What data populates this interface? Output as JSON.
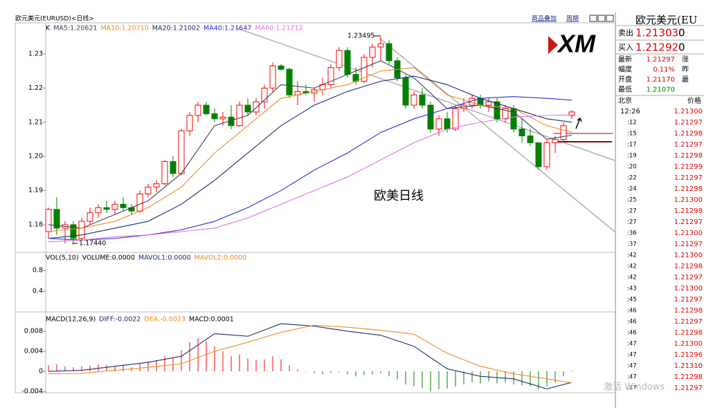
{
  "header": {
    "title": "欧元美元(EURUSD)<日线>",
    "links": [
      "商品叠加",
      "周期"
    ]
  },
  "chart_data": [
    {
      "type": "candlestick",
      "legend_prefix": "K",
      "open": [
        1.178,
        1.1845,
        1.179,
        1.18,
        1.176,
        1.181,
        1.1835,
        1.185,
        1.1845,
        1.186,
        1.185,
        1.184,
        1.189,
        1.191,
        1.192,
        1.1985,
        1.195,
        1.2075,
        1.212,
        1.215,
        1.2125,
        1.211,
        1.2115,
        1.209,
        1.215,
        1.213,
        1.216,
        1.22,
        1.2265,
        1.2255,
        1.218,
        1.219,
        1.2185,
        1.2195,
        1.221,
        1.226,
        1.231,
        1.224,
        1.222,
        1.229,
        1.232,
        1.233,
        1.228,
        1.223,
        1.215,
        1.218,
        1.215,
        1.208,
        1.211,
        1.208,
        1.214,
        1.215,
        1.217,
        1.215,
        1.216,
        1.211,
        1.214,
        1.208,
        1.206,
        1.204,
        1.197,
        1.204,
        1.205,
        1.212
      ],
      "high": [
        1.185,
        1.188,
        1.181,
        1.181,
        1.182,
        1.185,
        1.186,
        1.187,
        1.187,
        1.188,
        1.186,
        1.19,
        1.192,
        1.193,
        1.199,
        1.2,
        1.208,
        1.213,
        1.216,
        1.216,
        1.214,
        1.213,
        1.215,
        1.216,
        1.217,
        1.217,
        1.221,
        1.2275,
        1.227,
        1.226,
        1.222,
        1.221,
        1.22,
        1.223,
        1.227,
        1.232,
        1.232,
        1.226,
        1.23,
        1.233,
        1.23495,
        1.234,
        1.229,
        1.224,
        1.219,
        1.22,
        1.216,
        1.212,
        1.213,
        1.215,
        1.217,
        1.218,
        1.218,
        1.217,
        1.217,
        1.215,
        1.215,
        1.211,
        1.208,
        1.204,
        1.205,
        1.206,
        1.21,
        1.2135
      ],
      "low": [
        1.176,
        1.177,
        1.1745,
        1.1744,
        1.1755,
        1.18,
        1.182,
        1.1835,
        1.183,
        1.184,
        1.183,
        1.1835,
        1.188,
        1.1895,
        1.1915,
        1.194,
        1.1945,
        1.206,
        1.21,
        1.212,
        1.21,
        1.209,
        1.208,
        1.2085,
        1.212,
        1.212,
        1.214,
        1.219,
        1.225,
        1.217,
        1.215,
        1.218,
        1.216,
        1.218,
        1.22,
        1.225,
        1.223,
        1.221,
        1.2215,
        1.226,
        1.228,
        1.227,
        1.222,
        1.214,
        1.214,
        1.214,
        1.207,
        1.206,
        1.207,
        1.2075,
        1.213,
        1.214,
        1.214,
        1.213,
        1.21,
        1.21,
        1.207,
        1.204,
        1.203,
        1.196,
        1.196,
        1.201,
        1.204,
        1.211
      ],
      "close": [
        1.1845,
        1.179,
        1.18,
        1.176,
        1.181,
        1.1835,
        1.185,
        1.1845,
        1.186,
        1.185,
        1.184,
        1.189,
        1.191,
        1.192,
        1.1985,
        1.195,
        1.2075,
        1.212,
        1.215,
        1.2125,
        1.211,
        1.2115,
        1.209,
        1.215,
        1.213,
        1.216,
        1.22,
        1.2265,
        1.2255,
        1.218,
        1.219,
        1.2185,
        1.2195,
        1.221,
        1.226,
        1.231,
        1.224,
        1.222,
        1.229,
        1.232,
        1.233,
        1.228,
        1.223,
        1.215,
        1.218,
        1.215,
        1.208,
        1.211,
        1.208,
        1.214,
        1.215,
        1.217,
        1.215,
        1.216,
        1.211,
        1.214,
        1.208,
        1.206,
        1.204,
        1.197,
        1.204,
        1.205,
        1.209,
        1.213
      ],
      "up_color": "#ff0000",
      "down_color": "#008000",
      "series": [
        {
          "name": "MA5:1.20621",
          "color": "#3a3f5c",
          "x": [
            0,
            4,
            8,
            12,
            16,
            20,
            24,
            28,
            32,
            36,
            40,
            44,
            48,
            52,
            56,
            60,
            63
          ],
          "values": [
            1.18,
            1.179,
            1.183,
            1.187,
            1.195,
            1.209,
            1.212,
            1.221,
            1.22,
            1.224,
            1.228,
            1.223,
            1.214,
            1.215,
            1.213,
            1.205,
            1.20621
          ]
        },
        {
          "name": "MA10:1.20710",
          "color": "#f08a24",
          "x": [
            0,
            4,
            8,
            12,
            16,
            20,
            24,
            28,
            32,
            36,
            40,
            44,
            48,
            52,
            56,
            60,
            63
          ],
          "values": [
            1.178,
            1.179,
            1.181,
            1.185,
            1.191,
            1.201,
            1.209,
            1.217,
            1.219,
            1.221,
            1.225,
            1.226,
            1.218,
            1.215,
            1.214,
            1.209,
            1.2071
          ]
        },
        {
          "name": "MA20:1.21002",
          "color": "#1c2b6e",
          "x": [
            0,
            4,
            8,
            12,
            16,
            20,
            24,
            28,
            32,
            36,
            40,
            44,
            48,
            52,
            56,
            60,
            63
          ],
          "values": [
            1.176,
            1.177,
            1.179,
            1.181,
            1.186,
            1.193,
            1.201,
            1.209,
            1.215,
            1.219,
            1.222,
            1.2235,
            1.221,
            1.217,
            1.214,
            1.211,
            1.21002
          ]
        },
        {
          "name": "MA40:1.21647",
          "color": "#2a2ad0",
          "x": [
            0,
            4,
            8,
            12,
            16,
            20,
            24,
            28,
            32,
            36,
            40,
            44,
            48,
            52,
            56,
            60,
            63
          ],
          "values": [
            1.176,
            1.1755,
            1.176,
            1.177,
            1.1785,
            1.181,
            1.185,
            1.19,
            1.196,
            1.201,
            1.207,
            1.211,
            1.214,
            1.217,
            1.2175,
            1.217,
            1.21647
          ]
        },
        {
          "name": "MA60:1.21212",
          "color": "#e070e0",
          "x": [
            0,
            4,
            8,
            12,
            16,
            20,
            24,
            28,
            32,
            36,
            40,
            44,
            48,
            52,
            56,
            60,
            63
          ],
          "values": [
            1.175,
            1.1755,
            1.1765,
            1.177,
            1.178,
            1.179,
            1.182,
            1.186,
            1.19,
            1.194,
            1.199,
            1.204,
            1.208,
            1.21,
            1.2115,
            1.212,
            1.21212
          ]
        }
      ],
      "ylim": [
        1.1719,
        1.2391
      ],
      "yticks": [
        1.18,
        1.19,
        {
          "value": 1.2,
          "label": "1.20"
        },
        1.21,
        1.22,
        1.23
      ],
      "annotations": [
        "1.23495",
        "1.17440"
      ],
      "text": "欧美日线"
    },
    {
      "type": "bar",
      "legend": [
        "VOL(5,10)",
        "VOLUME:0.0000",
        "MAVOL1:0.0000",
        "MAVOL2:0.0000"
      ],
      "legend_colors": [
        "#000000",
        "#000000",
        "#1c2b6e",
        "#f08a24"
      ],
      "ylim": [
        0,
        1.1333
      ],
      "yticks": [
        0.4,
        0.8
      ]
    },
    {
      "type": "bar",
      "legend_prefix": "MACD(12,26,9)",
      "values": [
        0.0012,
        0.0014,
        0.001,
        0.0008,
        0.001,
        0.0012,
        0.0014,
        0.0012,
        0.001,
        0.0012,
        0.0008,
        0.0016,
        0.002,
        0.0022,
        0.003,
        0.0028,
        0.0042,
        0.0058,
        0.0066,
        0.006,
        0.005,
        0.004,
        0.003,
        0.0034,
        0.0026,
        0.0022,
        0.0024,
        0.003,
        0.0024,
        0.0012,
        0.0004,
        -0.0001,
        -0.0004,
        -0.0006,
        -0.0004,
        -0.0002,
        -0.0006,
        -0.001,
        -0.0008,
        -0.0006,
        -0.0004,
        -0.001,
        -0.0016,
        -0.0026,
        -0.003,
        -0.0034,
        -0.004,
        -0.0036,
        -0.0034,
        -0.003,
        -0.0026,
        -0.0022,
        -0.0024,
        -0.002,
        -0.0024,
        -0.0022,
        -0.0026,
        -0.0028,
        -0.003,
        -0.0036,
        -0.003,
        -0.0022,
        -0.001,
        0.0001
      ],
      "up_color": "#ff0000",
      "down_color": "#008000",
      "series": [
        {
          "name": "DIFF:-0.0022",
          "color": "#1c2b6e",
          "x": [
            0,
            4,
            8,
            12,
            16,
            20,
            24,
            28,
            32,
            36,
            40,
            44,
            48,
            52,
            56,
            60,
            63
          ],
          "values": [
            0.0,
            0.0002,
            0.001,
            0.0018,
            0.003,
            0.0075,
            0.007,
            0.0095,
            0.009,
            0.008,
            0.0072,
            0.005,
            0.0005,
            -0.001,
            -0.0015,
            -0.0035,
            -0.0022
          ]
        },
        {
          "name": "DEA:-0.0023",
          "color": "#f08a24",
          "x": [
            0,
            4,
            8,
            12,
            16,
            20,
            24,
            28,
            32,
            36,
            40,
            44,
            48,
            52,
            56,
            60,
            63
          ],
          "values": [
            -0.0005,
            -0.0004,
            0.0002,
            0.0008,
            0.0015,
            0.004,
            0.0058,
            0.0078,
            0.0092,
            0.0088,
            0.0082,
            0.0074,
            0.0036,
            0.001,
            -0.0005,
            -0.0015,
            -0.0023
          ]
        }
      ],
      "extra_label": "MACD:0.0001",
      "ylim": [
        -0.00428,
        0.01172
      ],
      "yticks": [
        -0.004,
        0,
        0.004,
        0.008
      ]
    }
  ],
  "logo": "XM",
  "watermark": "激活 Windows",
  "quote_panel": {
    "title": "欧元美元(EU",
    "sell": [
      "卖出",
      "1.21303",
      "0"
    ],
    "buy": [
      "买入",
      "1.21292",
      "0"
    ],
    "stats": [
      [
        "最新",
        "1.21297",
        "涨"
      ],
      [
        "幅度",
        "0.11%",
        "昨"
      ],
      [
        "开盘",
        "1.21170",
        "最"
      ],
      [
        "最低",
        "1.21070"
      ]
    ],
    "head": [
      "北京",
      "价格"
    ],
    "ticks": [
      [
        "12:26",
        "1.21300"
      ],
      [
        ":12",
        "1.21297"
      ],
      [
        ":15",
        "1.21298"
      ],
      [
        ":17",
        "1.21297"
      ],
      [
        ":19",
        "1.21298"
      ],
      [
        ":20",
        "1.21299"
      ],
      [
        ":22",
        "1.21297"
      ],
      [
        ":24",
        "1.21298"
      ],
      [
        ":25",
        "1.21300"
      ],
      [
        ":27",
        "1.21298"
      ],
      [
        ":27",
        "1.21297"
      ],
      [
        ":36",
        "1.21300"
      ],
      [
        ":37",
        "1.21297"
      ],
      [
        ":42",
        "1.21300"
      ],
      [
        ":42",
        "1.21298"
      ],
      [
        ":42",
        "1.21297"
      ],
      [
        ":43",
        "1.21300"
      ],
      [
        ":45",
        "1.21297"
      ],
      [
        ":46",
        "1.21298"
      ],
      [
        ":46",
        "1.21297"
      ],
      [
        ":46",
        "1.21298"
      ],
      [
        ":47",
        "1.21300"
      ],
      [
        ":47",
        "1.21296"
      ],
      [
        ":47",
        "1.21310"
      ],
      [
        ":47",
        "1.21298"
      ],
      [
        ":47",
        "1.21297"
      ]
    ]
  }
}
